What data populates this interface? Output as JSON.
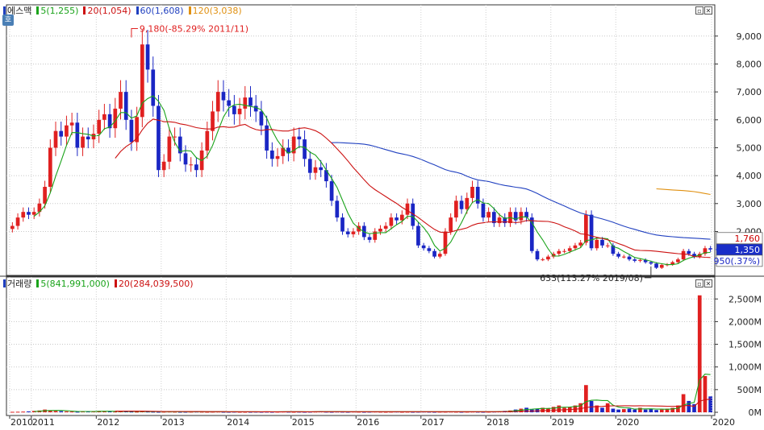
{
  "price_legend": {
    "name": "에스맥",
    "ma5": "5(1,255)",
    "ma20": "20(1,054)",
    "ma60": "60(1,608)",
    "ma120": "120(3,038)"
  },
  "volume_legend": {
    "name": "거래량",
    "vma5": "5(841,991,000)",
    "vma20": "20(284,039,500)"
  },
  "home_button_label": "호",
  "colors": {
    "up": "#e02020",
    "down": "#1a26c4",
    "ma5": "#1aa31a",
    "ma20": "#cc1111",
    "ma60": "#2040c0",
    "ma120": "#e09010"
  },
  "annotations": {
    "high": "9,180(-85.29% 2011/11)",
    "low": "633(113.27% 2019/08)"
  },
  "price_tags": {
    "high_recent": "1,760",
    "current": "1,350",
    "low_recent": "950(.37%)"
  },
  "chart_data": [
    {
      "type": "candlestick",
      "title": "에스맥",
      "period": "monthly",
      "ylim": [
        600,
        9600
      ],
      "yticks": [
        2000,
        3000,
        4000,
        5000,
        6000,
        7000,
        8000,
        9000
      ],
      "ytick_labels": [
        "2,000",
        "3,000",
        "4,000",
        "5,000",
        "6,000",
        "7,000",
        "8,000",
        "9,000"
      ],
      "x_labels": [
        "2010",
        "2011",
        "2012",
        "2013",
        "2014",
        "2015",
        "2016",
        "2017",
        "2018",
        "2019",
        "2020",
        "2020"
      ],
      "grid": true,
      "high_label": {
        "value": 9180,
        "date": "2011/11"
      },
      "low_label": {
        "value": 633,
        "date": "2019/08"
      },
      "ohlc_close": [
        2200,
        2500,
        2700,
        2600,
        2700,
        3000,
        3600,
        5000,
        5600,
        5400,
        5800,
        5900,
        5000,
        5400,
        5300,
        5500,
        6000,
        6200,
        5700,
        6400,
        7000,
        6000,
        5200,
        6100,
        8700,
        7800,
        6500,
        4200,
        4500,
        5400,
        5400,
        4800,
        4400,
        4400,
        4200,
        4900,
        5600,
        6300,
        7000,
        6700,
        6500,
        6200,
        6400,
        6800,
        6500,
        6300,
        5800,
        4900,
        4600,
        4700,
        5000,
        4800,
        5400,
        5300,
        4600,
        4100,
        4300,
        4200,
        3800,
        3100,
        2500,
        2000,
        1900,
        2000,
        2200,
        1800,
        1700,
        2000,
        2100,
        2200,
        2500,
        2400,
        2600,
        3000,
        2200,
        1500,
        1400,
        1300,
        1100,
        1200,
        2000,
        2500,
        3100,
        2800,
        3200,
        3600,
        3000,
        2500,
        2700,
        2300,
        2500,
        2300,
        2700,
        2400,
        2700,
        2500,
        1300,
        1000,
        1000,
        1100,
        1200,
        1300,
        1300,
        1400,
        1500,
        1600,
        2600,
        1400,
        1700,
        1500,
        1500,
        1200,
        1100,
        1100,
        1000,
        950,
        980,
        900,
        850,
        700,
        800,
        820,
        900,
        1000,
        1300,
        1200,
        1100,
        1200,
        1400,
        1350
      ],
      "series": [
        {
          "name": "5",
          "color": "#1aa31a"
        },
        {
          "name": "20",
          "color": "#cc1111"
        },
        {
          "name": "60",
          "color": "#2040c0"
        },
        {
          "name": "120",
          "color": "#e09010"
        }
      ]
    },
    {
      "type": "bar",
      "title": "거래량",
      "ylim": [
        0,
        2700
      ],
      "unit": "M",
      "yticks": [
        0,
        500,
        1000,
        1500,
        2000,
        2500
      ],
      "ytick_labels": [
        "0M",
        "500M",
        "1,000M",
        "1,500M",
        "2,000M",
        "2,500M"
      ],
      "values_m": [
        10,
        12,
        15,
        20,
        30,
        40,
        60,
        45,
        30,
        25,
        20,
        15,
        12,
        18,
        20,
        25,
        30,
        22,
        18,
        15,
        25,
        20,
        15,
        12,
        20,
        15,
        12,
        10,
        12,
        15,
        12,
        10,
        10,
        12,
        15,
        12,
        10,
        12,
        15,
        10,
        10,
        12,
        10,
        10,
        10,
        12,
        10,
        12,
        10,
        12,
        15,
        12,
        10,
        12,
        10,
        12,
        15,
        20,
        12,
        10,
        15,
        12,
        10,
        15,
        12,
        10,
        12,
        15,
        12,
        10,
        12,
        15,
        10,
        12,
        10,
        12,
        15,
        12,
        10,
        12,
        12,
        15,
        12,
        10,
        12,
        15,
        12,
        10,
        12,
        15,
        20,
        30,
        40,
        60,
        80,
        100,
        60,
        80,
        100,
        90,
        120,
        150,
        100,
        120,
        150,
        200,
        600,
        250,
        150,
        100,
        200,
        80,
        60,
        70,
        80,
        60,
        100,
        60,
        80,
        50,
        60,
        80,
        100,
        150,
        400,
        250,
        180,
        2580,
        800,
        350
      ],
      "series": [
        {
          "name": "5",
          "color": "#1aa31a"
        },
        {
          "name": "20",
          "color": "#cc1111"
        }
      ]
    }
  ]
}
